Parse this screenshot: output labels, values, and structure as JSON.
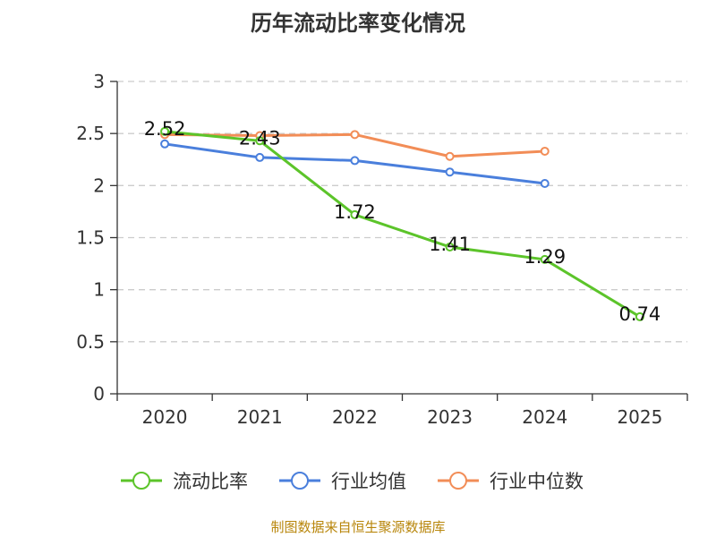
{
  "chart_data": {
    "type": "line",
    "title": "历年流动比率变化情况",
    "categories": [
      "2020",
      "2021",
      "2022",
      "2023",
      "2024",
      "2025"
    ],
    "ylim": [
      0,
      3
    ],
    "yticks": [
      "0",
      "0.5",
      "1",
      "1.5",
      "2",
      "2.5",
      "3"
    ],
    "ytick_values": [
      0,
      0.5,
      1,
      1.5,
      2,
      2.5,
      3
    ],
    "grid": true,
    "legend_position": "bottom",
    "series": [
      {
        "name": "流动比率",
        "color": "#5cc42a",
        "values": [
          2.52,
          2.43,
          1.72,
          1.41,
          1.29,
          0.74
        ],
        "labels": [
          "2.52",
          "2.43",
          "1.72",
          "1.41",
          "1.29",
          "0.74"
        ]
      },
      {
        "name": "行业均值",
        "color": "#4a7fdc",
        "values": [
          2.4,
          2.27,
          2.24,
          2.13,
          2.02,
          null
        ]
      },
      {
        "name": "行业中位数",
        "color": "#f28d57",
        "values": [
          2.49,
          2.48,
          2.49,
          2.28,
          2.33,
          null
        ]
      }
    ]
  },
  "source_text": "制图数据来自恒生聚源数据库"
}
